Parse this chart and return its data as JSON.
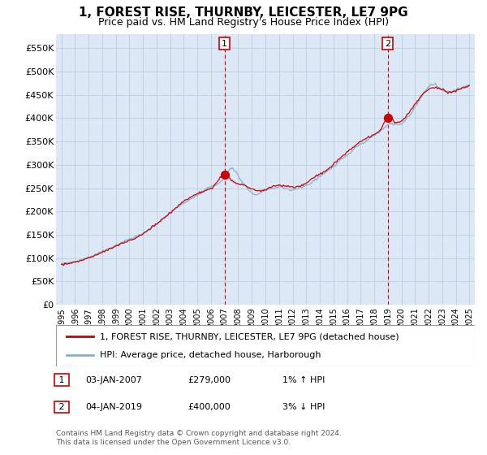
{
  "title": "1, FOREST RISE, THURNBY, LEICESTER, LE7 9PG",
  "subtitle": "Price paid vs. HM Land Registry's House Price Index (HPI)",
  "ylabel_ticks": [
    "£0",
    "£50K",
    "£100K",
    "£150K",
    "£200K",
    "£250K",
    "£300K",
    "£350K",
    "£400K",
    "£450K",
    "£500K",
    "£550K"
  ],
  "ytick_values": [
    0,
    50000,
    100000,
    150000,
    200000,
    250000,
    300000,
    350000,
    400000,
    450000,
    500000,
    550000
  ],
  "ylim": [
    0,
    580000
  ],
  "sale1_year": 2007.0,
  "sale1_price": 279000,
  "sale2_year": 2019.0,
  "sale2_price": 400000,
  "line_color_property": "#cc0000",
  "line_color_hpi": "#88afd0",
  "plot_bg_color": "#dce8f5",
  "background_color": "#ffffff",
  "grid_color": "#b8cfe0",
  "legend_label_property": "1, FOREST RISE, THURNBY, LEICESTER, LE7 9PG (detached house)",
  "legend_label_hpi": "HPI: Average price, detached house, Harborough",
  "footnote": "Contains HM Land Registry data © Crown copyright and database right 2024.\nThis data is licensed under the Open Government Licence v3.0."
}
